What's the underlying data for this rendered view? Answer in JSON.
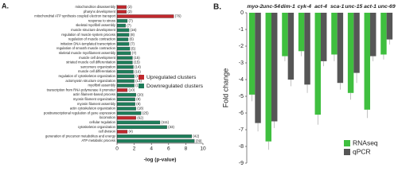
{
  "chart_data": [
    {
      "type": "barh",
      "label": "A.",
      "categories": [
        "mitochondrion disassembly",
        "pharynx development",
        "mitochondrial ATP synthesis coupled electron transport",
        "response to stress",
        "skeletal myofibril assembly",
        "muscle structure development",
        "regulation of muscle system process",
        "regulation of muscle contraction",
        "initiation DNA-templated transcription",
        "regulation of smooth muscle contraction",
        "skeletal muscle myofilament assembly",
        "muscle cell development",
        "striated muscle cell differentiation",
        "sarcomere organization",
        "muscle cell differentiation",
        "regulation of cytoskeleton organization",
        "actomyosin structure organization",
        "myofibril assembly",
        "transcription from RNA polymerase II promoter",
        "actin filament-based process",
        "myosin filament organization",
        "myosin filament assembly",
        "actin cytoskeleton organization",
        "posttranscriptional regulation of gene expression",
        "locomotion",
        "cellular regulation",
        "cytoskeleton organization",
        "cell division",
        "generation of precursor metabolites and energy",
        "ATP metabolic process"
      ],
      "series": [
        {
          "name": "Upregulated clusters",
          "color": "#c0282d",
          "values": [
            1.1,
            1.1,
            6.6,
            null,
            null,
            null,
            null,
            null,
            null,
            null,
            null,
            null,
            null,
            null,
            null,
            null,
            null,
            null,
            1.2,
            null,
            null,
            null,
            null,
            null,
            2.2,
            null,
            null,
            1.2,
            null,
            null
          ],
          "value_labels": [
            "(2)",
            "(2)",
            "(76)",
            null,
            null,
            null,
            null,
            null,
            null,
            null,
            null,
            null,
            null,
            null,
            null,
            null,
            null,
            null,
            "(10)",
            null,
            null,
            null,
            null,
            null,
            "(62)",
            null,
            null,
            "(4)",
            null,
            null
          ]
        },
        {
          "name": "Downregulated clusters",
          "color": "#1e7d5a",
          "values": [
            null,
            null,
            null,
            1.2,
            1.0,
            1.4,
            1.4,
            1.3,
            1.4,
            1.5,
            1.6,
            1.8,
            1.8,
            1.9,
            1.9,
            2.0,
            2.0,
            2.0,
            null,
            2.2,
            2.1,
            2.1,
            2.2,
            2.8,
            null,
            5.0,
            5.8,
            null,
            8.7,
            9.0
          ],
          "value_labels": [
            null,
            null,
            null,
            "(7)",
            "(7)",
            "(16)",
            "(8)",
            "(6)",
            "(7)",
            "(5)",
            "(7)",
            "(15)",
            "(15)",
            "(14)",
            "(16)",
            "(12)",
            "(13)",
            "(11)",
            null,
            "(20)",
            "(8)",
            "(8)",
            "(18)",
            "(25)",
            null,
            "(111)",
            "(33)",
            null,
            "(42)",
            "(39)"
          ]
        }
      ],
      "xlabel": "-log (p-value)",
      "xlim": [
        0,
        10
      ],
      "xticks": [
        0,
        2,
        4,
        6,
        8,
        10
      ],
      "legend": "center-right"
    },
    {
      "type": "bar",
      "label": "B.",
      "categories": [
        "myo-2",
        "unc-54",
        "dim-1",
        "cyk-4",
        "act-4",
        "sca-1",
        "unc-15",
        "act-1",
        "unc-69"
      ],
      "series": [
        {
          "name": "RNAseq",
          "color": "#3fbf3f",
          "values": [
            -4.9,
            -7.7,
            -2.6,
            -2.3,
            -6.1,
            -2.5,
            -4.8,
            -5.8,
            -2.5
          ],
          "errors": [
            0.4,
            0.5,
            0.3,
            0.3,
            0.6,
            0.4,
            0.4,
            0.5,
            0.3
          ]
        },
        {
          "name": "qPCR",
          "color": "#565656",
          "values": [
            -6.6,
            -6.5,
            -4.0,
            -4.3,
            -2.9,
            -4.2,
            -3.6,
            -2.6,
            -1.6
          ],
          "errors": [
            0.5,
            0.4,
            0.4,
            0.5,
            0.3,
            0.4,
            0.6,
            0.3,
            0.3
          ]
        }
      ],
      "ylabel": "Fold change",
      "ylim": [
        -9,
        0
      ],
      "yticks": [
        0,
        -1,
        -2,
        -3,
        -4,
        -5,
        -6,
        -7,
        -8,
        -9
      ],
      "legend": "lower-right"
    }
  ]
}
